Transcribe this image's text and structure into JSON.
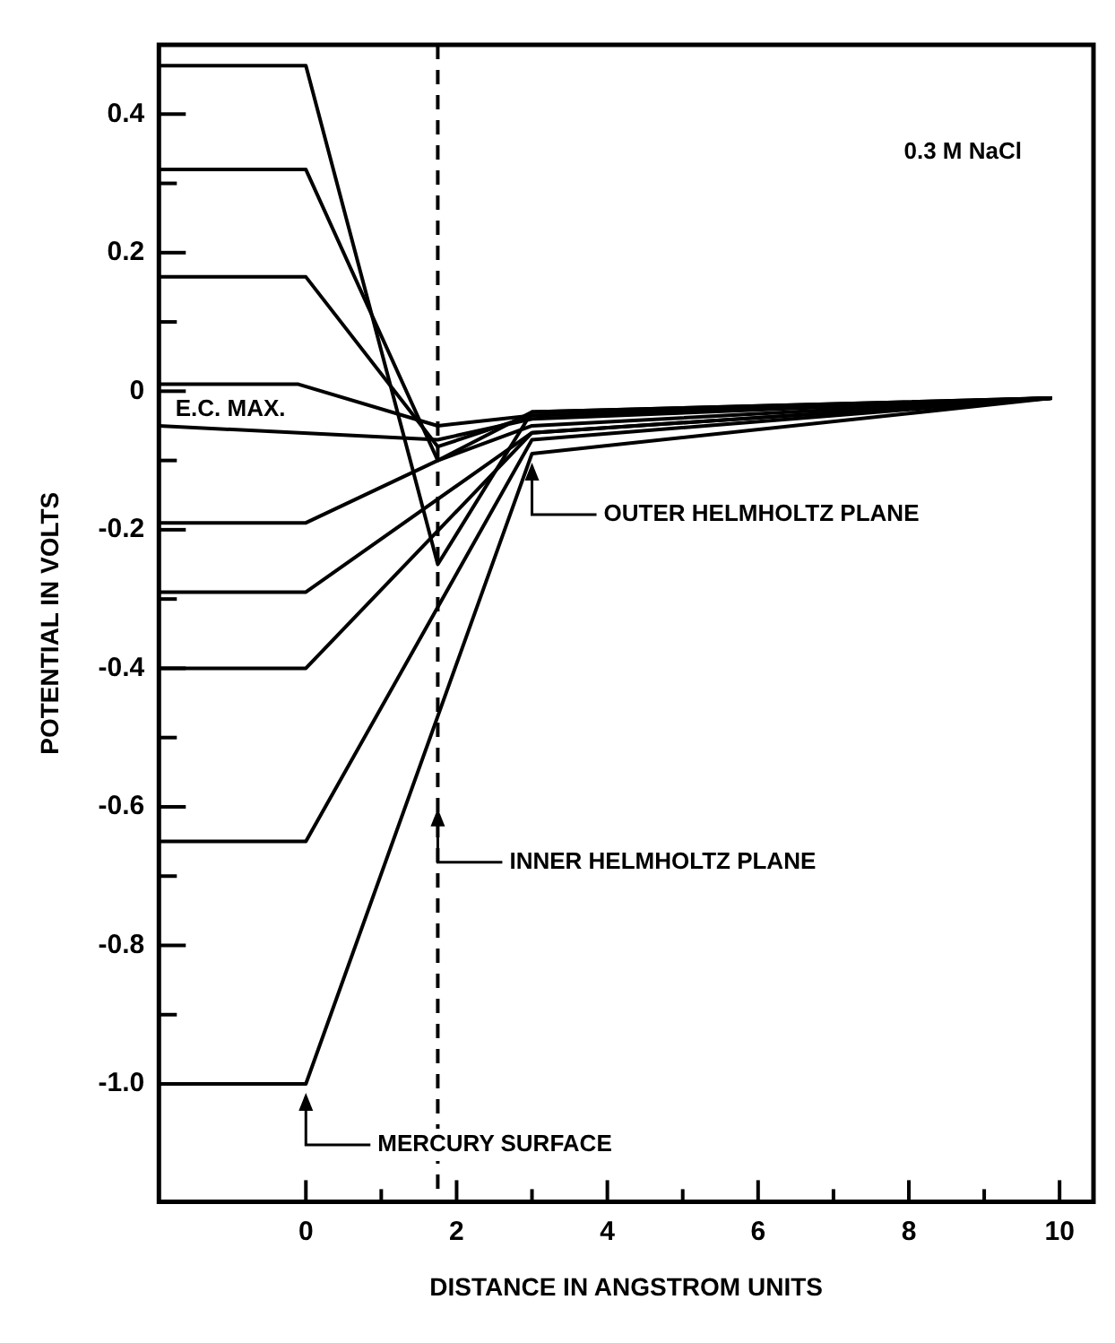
{
  "chart_data": {
    "type": "line",
    "xlabel": "DISTANCE IN ANGSTROM UNITS",
    "ylabel": "POTENTIAL IN VOLTS",
    "xlim": [
      -1.95,
      10.45
    ],
    "ylim": [
      -1.17,
      0.5
    ],
    "xticks": [
      0,
      {
        "value": 1,
        "label": null
      },
      2,
      {
        "value": 3,
        "label": null
      },
      4,
      {
        "value": 5,
        "label": null
      },
      6,
      {
        "value": 7,
        "label": null
      },
      8,
      {
        "value": 9,
        "label": null
      },
      10
    ],
    "yticks": [
      {
        "value": -1,
        "label": "-1.0"
      },
      {
        "value": -0.9,
        "label": null
      },
      -0.8,
      {
        "value": -0.7,
        "label": null
      },
      -0.6,
      {
        "value": -0.5,
        "label": null
      },
      -0.4,
      {
        "value": -0.3,
        "label": null
      },
      -0.2,
      {
        "value": -0.1,
        "label": null
      },
      0,
      {
        "value": 0.1,
        "label": null
      },
      0.2,
      {
        "value": 0.3,
        "label": null
      },
      0.4
    ],
    "grid": false,
    "legend": false,
    "marker": "none",
    "line_style": "solid",
    "series": [
      {
        "color": "#000000",
        "x": [
          -1.95,
          0,
          1.75,
          3,
          9.9
        ],
        "values": [
          0.47,
          0.47,
          -0.25,
          -0.03,
          -0.01
        ]
      },
      {
        "color": "#000000",
        "x": [
          -1.95,
          0,
          1.75,
          3,
          9.9
        ],
        "values": [
          0.32,
          0.32,
          -0.1,
          -0.03,
          -0.01
        ]
      },
      {
        "color": "#000000",
        "x": [
          -1.95,
          0,
          1.75,
          3,
          9.9
        ],
        "values": [
          0.165,
          0.165,
          -0.08,
          -0.035,
          -0.01
        ]
      },
      {
        "color": "#000000",
        "x": [
          -1.95,
          -0.1,
          1.75,
          3,
          9.9
        ],
        "values": [
          0.01,
          0.01,
          -0.05,
          -0.035,
          -0.01
        ]
      },
      {
        "color": "#000000",
        "x": [
          -1.95,
          1.75,
          3,
          9.9
        ],
        "values": [
          -0.05,
          -0.07,
          -0.04,
          -0.01
        ]
      },
      {
        "color": "#000000",
        "x": [
          -1.95,
          0,
          1.75,
          3,
          9.9
        ],
        "values": [
          -0.19,
          -0.19,
          -0.1,
          -0.05,
          -0.01
        ]
      },
      {
        "color": "#000000",
        "x": [
          -1.95,
          0,
          3,
          9.9
        ],
        "values": [
          -0.29,
          -0.29,
          -0.06,
          -0.01
        ]
      },
      {
        "color": "#000000",
        "x": [
          -1.95,
          0,
          3,
          9.9
        ],
        "values": [
          -0.4,
          -0.4,
          -0.06,
          -0.01
        ]
      },
      {
        "color": "#000000",
        "x": [
          -1.95,
          0,
          3,
          9.9
        ],
        "values": [
          -0.65,
          -0.65,
          -0.07,
          -0.01
        ]
      },
      {
        "color": "#000000",
        "x": [
          -1.95,
          0,
          3,
          9.9
        ],
        "values": [
          -1.0,
          -1.0,
          -0.09,
          -0.01
        ]
      }
    ],
    "ref_lines": [
      {
        "axis": "x",
        "value": 1.75,
        "color": "#000000",
        "line_style": "dashed",
        "label": "INNER HELMHOLTZ PLANE"
      }
    ],
    "annotations": [
      "0.3 M NaCl",
      {
        "text": "E.C. MAX.",
        "x": -1.0,
        "y": -0.05
      },
      {
        "text": "OUTER HELMHOLTZ PLANE",
        "x": 3,
        "y": -0.09
      },
      {
        "text": "MERCURY SURFACE",
        "x": 0,
        "y": -1.0
      }
    ]
  }
}
